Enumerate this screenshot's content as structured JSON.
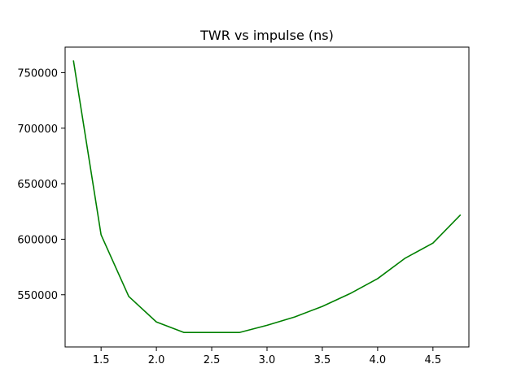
{
  "chart_data": {
    "type": "line",
    "title": "TWR vs impulse (ns)",
    "xlabel": "",
    "ylabel": "",
    "xlim": [
      1.175,
      4.825
    ],
    "ylim": [
      503000,
      773000
    ],
    "grid": false,
    "x_ticks": [
      1.5,
      2.0,
      2.5,
      3.0,
      3.5,
      4.0,
      4.5
    ],
    "x_tick_labels": [
      "1.5",
      "2.0",
      "2.5",
      "3.0",
      "3.5",
      "4.0",
      "4.5"
    ],
    "y_ticks": [
      550000,
      600000,
      650000,
      700000,
      750000
    ],
    "y_tick_labels": [
      "550000",
      "600000",
      "650000",
      "700000",
      "750000"
    ],
    "series": [
      {
        "color": "#008000",
        "x": [
          1.25,
          1.5,
          1.75,
          2.0,
          2.25,
          2.5,
          2.75,
          3.0,
          3.25,
          3.5,
          3.75,
          4.0,
          4.25,
          4.5,
          4.75
        ],
        "y": [
          761000,
          604000,
          548500,
          525500,
          516000,
          516000,
          516000,
          522500,
          530000,
          539500,
          551000,
          564500,
          583000,
          596500,
          622000
        ]
      }
    ]
  }
}
